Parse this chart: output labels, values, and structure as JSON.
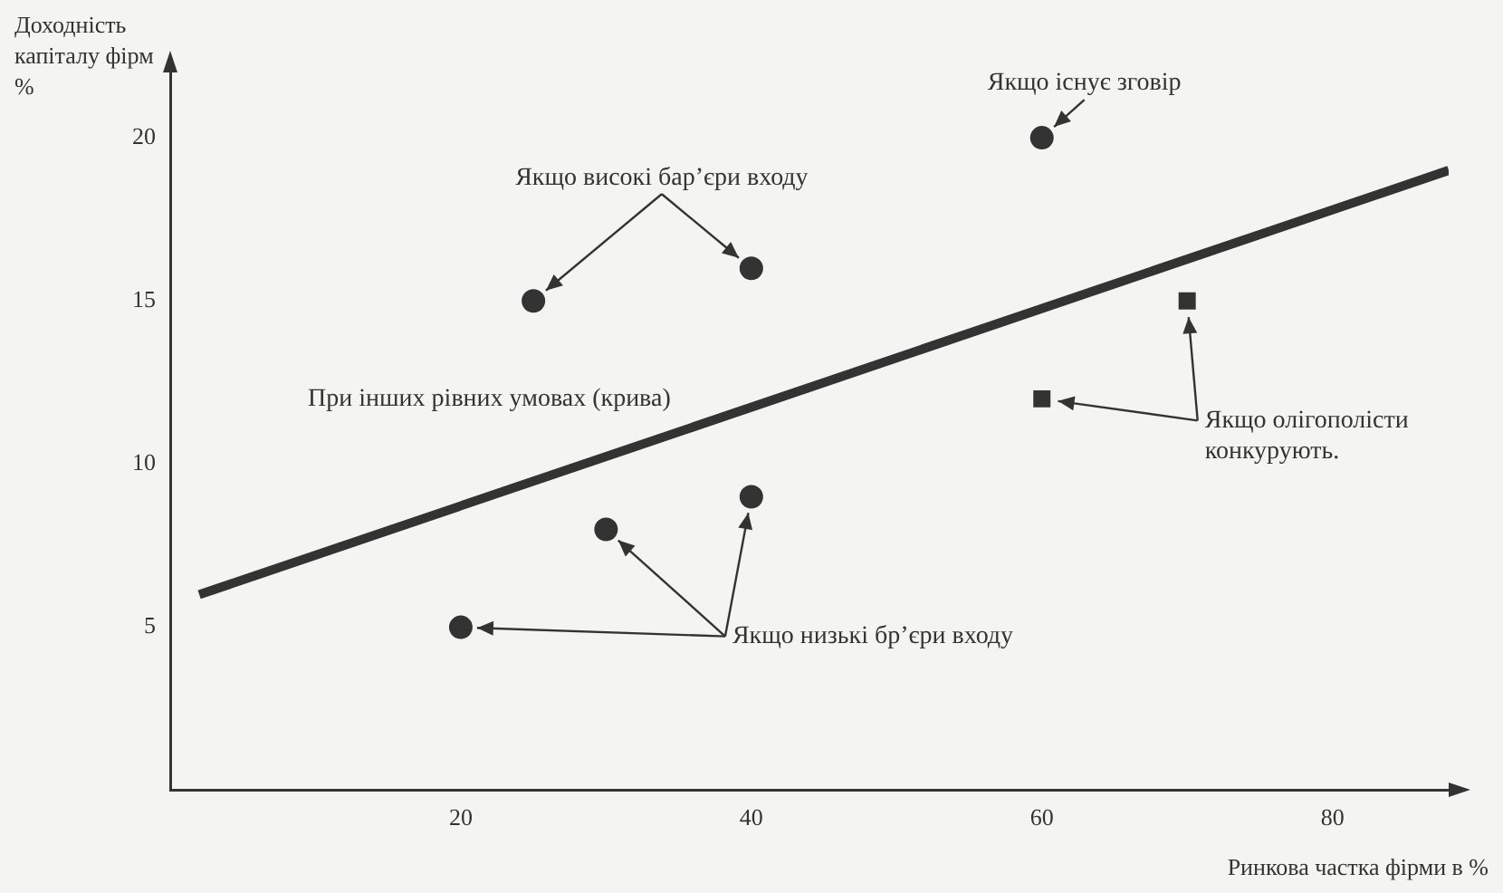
{
  "chart_data": {
    "type": "scatter",
    "xlabel": "Ринкова частка фірми в %",
    "ylabel": "Доходність капіталу фірм %",
    "xlim": [
      0,
      88
    ],
    "ylim": [
      0,
      22
    ],
    "xticks": [
      20,
      40,
      60,
      80
    ],
    "yticks": [
      5,
      10,
      15,
      20
    ],
    "grid": false,
    "legend": false,
    "series": [
      {
        "name": "При інших рівних умовах (крива)",
        "type": "line",
        "color": "#333333",
        "marker": "none",
        "x": [
          2,
          88
        ],
        "values": [
          6,
          19
        ]
      },
      {
        "name": "Якщо високі бар’єри входу",
        "color": "#333333",
        "marker": "circle",
        "x": [
          25,
          40
        ],
        "values": [
          15,
          16
        ]
      },
      {
        "name": "Якщо існує зговір",
        "color": "#333333",
        "marker": "circle",
        "x": [
          60
        ],
        "values": [
          20
        ]
      },
      {
        "name": "Якщо олігополісти конкурують.",
        "color": "#333333",
        "marker": "square",
        "x": [
          60,
          70
        ],
        "values": [
          12,
          15
        ]
      },
      {
        "name": "Якщо низькі бр’єри входу",
        "color": "#333333",
        "marker": "circle",
        "x": [
          20,
          30,
          40
        ],
        "values": [
          5,
          8,
          9
        ]
      }
    ]
  }
}
